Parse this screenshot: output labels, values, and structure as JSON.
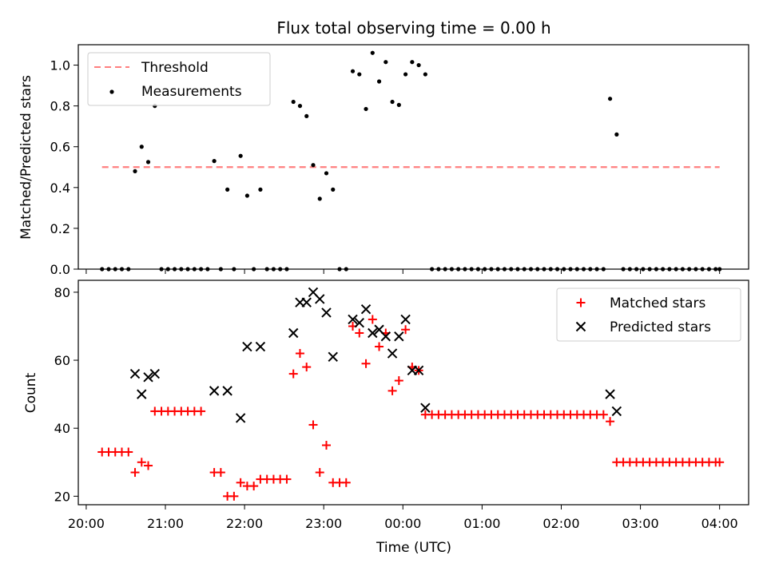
{
  "chart_data": [
    {
      "type": "scatter",
      "title": "Flux total observing time = 0.00 h",
      "xlabel": "",
      "ylabel": "Matched/Predicted stars",
      "xlim": [
        "19:54",
        "04:22"
      ],
      "ylim": [
        0,
        1.1
      ],
      "yticks": [
        0.0,
        0.2,
        0.4,
        0.6,
        0.8,
        1.0
      ],
      "ytick_labels": [
        "0.0",
        "0.2",
        "0.4",
        "0.6",
        "0.8",
        "1.0"
      ],
      "legend_position": "top-left",
      "series": [
        {
          "name": "Threshold",
          "kind": "dashed-line",
          "color": "#ff7f7f",
          "points": [
            [
              "20:12",
              0.5
            ],
            [
              "04:00",
              0.5
            ]
          ]
        },
        {
          "name": "Measurements",
          "kind": "dots",
          "color": "#000000",
          "points": [
            [
              "20:12",
              0.0
            ],
            [
              "20:17",
              0.0
            ],
            [
              "20:22",
              0.0
            ],
            [
              "20:27",
              0.0
            ],
            [
              "20:32",
              0.0
            ],
            [
              "20:37",
              0.48
            ],
            [
              "20:42",
              0.6
            ],
            [
              "20:47",
              0.525
            ],
            [
              "20:52",
              0.8
            ],
            [
              "20:57",
              0.0
            ],
            [
              "21:02",
              0.0
            ],
            [
              "21:07",
              0.0
            ],
            [
              "21:12",
              0.0
            ],
            [
              "21:17",
              0.0
            ],
            [
              "21:22",
              0.0
            ],
            [
              "21:27",
              0.0
            ],
            [
              "21:32",
              0.0
            ],
            [
              "21:37",
              0.53
            ],
            [
              "21:42",
              0.0
            ],
            [
              "21:47",
              0.39
            ],
            [
              "21:52",
              0.0
            ],
            [
              "21:57",
              0.555
            ],
            [
              "22:02",
              0.36
            ],
            [
              "22:07",
              0.0
            ],
            [
              "22:12",
              0.39
            ],
            [
              "22:17",
              0.0
            ],
            [
              "22:22",
              0.0
            ],
            [
              "22:27",
              0.0
            ],
            [
              "22:32",
              0.0
            ],
            [
              "22:37",
              0.82
            ],
            [
              "22:42",
              0.8
            ],
            [
              "22:47",
              0.75
            ],
            [
              "22:52",
              0.51
            ],
            [
              "22:57",
              0.345
            ],
            [
              "23:02",
              0.47
            ],
            [
              "23:07",
              0.39
            ],
            [
              "23:12",
              0.0
            ],
            [
              "23:17",
              0.0
            ],
            [
              "23:22",
              0.97
            ],
            [
              "23:27",
              0.955
            ],
            [
              "23:32",
              0.785
            ],
            [
              "23:37",
              1.06
            ],
            [
              "23:42",
              0.92
            ],
            [
              "23:47",
              1.015
            ],
            [
              "23:52",
              0.82
            ],
            [
              "23:57",
              0.805
            ],
            [
              "00:02",
              0.955
            ],
            [
              "00:07",
              1.015
            ],
            [
              "00:12",
              1.0
            ],
            [
              "00:17",
              0.955
            ],
            [
              "00:22",
              0.0
            ],
            [
              "00:27",
              0.0
            ],
            [
              "00:32",
              0.0
            ],
            [
              "00:37",
              0.0
            ],
            [
              "00:42",
              0.0
            ],
            [
              "00:47",
              0.0
            ],
            [
              "00:52",
              0.0
            ],
            [
              "00:57",
              0.0
            ],
            [
              "01:02",
              0.0
            ],
            [
              "01:07",
              0.0
            ],
            [
              "01:12",
              0.0
            ],
            [
              "01:17",
              0.0
            ],
            [
              "01:22",
              0.0
            ],
            [
              "01:27",
              0.0
            ],
            [
              "01:32",
              0.0
            ],
            [
              "01:37",
              0.0
            ],
            [
              "01:42",
              0.0
            ],
            [
              "01:47",
              0.0
            ],
            [
              "01:52",
              0.0
            ],
            [
              "01:57",
              0.0
            ],
            [
              "02:02",
              0.0
            ],
            [
              "02:07",
              0.0
            ],
            [
              "02:12",
              0.0
            ],
            [
              "02:17",
              0.0
            ],
            [
              "02:22",
              0.0
            ],
            [
              "02:27",
              0.0
            ],
            [
              "02:32",
              0.0
            ],
            [
              "02:37",
              0.835
            ],
            [
              "02:42",
              0.66
            ],
            [
              "02:47",
              0.0
            ],
            [
              "02:52",
              0.0
            ],
            [
              "02:57",
              0.0
            ],
            [
              "03:02",
              0.0
            ],
            [
              "03:07",
              0.0
            ],
            [
              "03:12",
              0.0
            ],
            [
              "03:17",
              0.0
            ],
            [
              "03:22",
              0.0
            ],
            [
              "03:27",
              0.0
            ],
            [
              "03:32",
              0.0
            ],
            [
              "03:37",
              0.0
            ],
            [
              "03:42",
              0.0
            ],
            [
              "03:47",
              0.0
            ],
            [
              "03:52",
              0.0
            ],
            [
              "03:57",
              0.0
            ],
            [
              "04:00",
              0.0
            ]
          ]
        }
      ]
    },
    {
      "type": "scatter",
      "title": "",
      "xlabel": "Time (UTC)",
      "ylabel": "Count",
      "xlim": [
        "19:54",
        "04:22"
      ],
      "ylim": [
        17.5,
        83.5
      ],
      "xticks": [
        "20:00",
        "21:00",
        "22:00",
        "23:00",
        "00:00",
        "01:00",
        "02:00",
        "03:00",
        "04:00"
      ],
      "yticks": [
        20,
        40,
        60,
        80
      ],
      "ytick_labels": [
        "20",
        "40",
        "60",
        "80"
      ],
      "legend_position": "top-right",
      "series": [
        {
          "name": "Matched stars",
          "kind": "plus",
          "color": "#ff0000",
          "points": [
            [
              "20:12",
              33
            ],
            [
              "20:17",
              33
            ],
            [
              "20:22",
              33
            ],
            [
              "20:27",
              33
            ],
            [
              "20:32",
              33
            ],
            [
              "20:37",
              27
            ],
            [
              "20:42",
              30
            ],
            [
              "20:47",
              29
            ],
            [
              "20:52",
              45
            ],
            [
              "20:57",
              45
            ],
            [
              "21:02",
              45
            ],
            [
              "21:07",
              45
            ],
            [
              "21:12",
              45
            ],
            [
              "21:17",
              45
            ],
            [
              "21:22",
              45
            ],
            [
              "21:27",
              45
            ],
            [
              "21:37",
              27
            ],
            [
              "21:42",
              27
            ],
            [
              "21:47",
              20
            ],
            [
              "21:52",
              20
            ],
            [
              "21:57",
              24
            ],
            [
              "22:02",
              23
            ],
            [
              "22:07",
              23
            ],
            [
              "22:12",
              25
            ],
            [
              "22:17",
              25
            ],
            [
              "22:22",
              25
            ],
            [
              "22:27",
              25
            ],
            [
              "22:32",
              25
            ],
            [
              "22:37",
              56
            ],
            [
              "22:42",
              62
            ],
            [
              "22:47",
              58
            ],
            [
              "22:52",
              41
            ],
            [
              "22:57",
              27
            ],
            [
              "23:02",
              35
            ],
            [
              "23:07",
              24
            ],
            [
              "23:12",
              24
            ],
            [
              "23:17",
              24
            ],
            [
              "23:22",
              70
            ],
            [
              "23:27",
              68
            ],
            [
              "23:32",
              59
            ],
            [
              "23:37",
              72
            ],
            [
              "23:42",
              64
            ],
            [
              "23:47",
              68
            ],
            [
              "23:52",
              51
            ],
            [
              "23:57",
              54
            ],
            [
              "00:02",
              69
            ],
            [
              "00:07",
              58
            ],
            [
              "00:12",
              57
            ],
            [
              "00:17",
              44
            ],
            [
              "00:22",
              44
            ],
            [
              "00:27",
              44
            ],
            [
              "00:32",
              44
            ],
            [
              "00:37",
              44
            ],
            [
              "00:42",
              44
            ],
            [
              "00:47",
              44
            ],
            [
              "00:52",
              44
            ],
            [
              "00:57",
              44
            ],
            [
              "01:02",
              44
            ],
            [
              "01:07",
              44
            ],
            [
              "01:12",
              44
            ],
            [
              "01:17",
              44
            ],
            [
              "01:22",
              44
            ],
            [
              "01:27",
              44
            ],
            [
              "01:32",
              44
            ],
            [
              "01:37",
              44
            ],
            [
              "01:42",
              44
            ],
            [
              "01:47",
              44
            ],
            [
              "01:52",
              44
            ],
            [
              "01:57",
              44
            ],
            [
              "02:02",
              44
            ],
            [
              "02:07",
              44
            ],
            [
              "02:12",
              44
            ],
            [
              "02:17",
              44
            ],
            [
              "02:22",
              44
            ],
            [
              "02:27",
              44
            ],
            [
              "02:32",
              44
            ],
            [
              "02:37",
              42
            ],
            [
              "02:42",
              30
            ],
            [
              "02:47",
              30
            ],
            [
              "02:52",
              30
            ],
            [
              "02:57",
              30
            ],
            [
              "03:02",
              30
            ],
            [
              "03:07",
              30
            ],
            [
              "03:12",
              30
            ],
            [
              "03:17",
              30
            ],
            [
              "03:22",
              30
            ],
            [
              "03:27",
              30
            ],
            [
              "03:32",
              30
            ],
            [
              "03:37",
              30
            ],
            [
              "03:42",
              30
            ],
            [
              "03:47",
              30
            ],
            [
              "03:52",
              30
            ],
            [
              "03:57",
              30
            ],
            [
              "04:00",
              30
            ]
          ]
        },
        {
          "name": "Predicted stars",
          "kind": "x",
          "color": "#000000",
          "points": [
            [
              "20:37",
              56
            ],
            [
              "20:42",
              50
            ],
            [
              "20:47",
              55
            ],
            [
              "20:52",
              56
            ],
            [
              "21:37",
              51
            ],
            [
              "21:47",
              51
            ],
            [
              "21:57",
              43
            ],
            [
              "22:02",
              64
            ],
            [
              "22:12",
              64
            ],
            [
              "22:37",
              68
            ],
            [
              "22:42",
              77
            ],
            [
              "22:47",
              77
            ],
            [
              "22:52",
              80
            ],
            [
              "22:57",
              78
            ],
            [
              "23:02",
              74
            ],
            [
              "23:07",
              61
            ],
            [
              "23:22",
              72
            ],
            [
              "23:27",
              71
            ],
            [
              "23:32",
              75
            ],
            [
              "23:37",
              68
            ],
            [
              "23:42",
              69
            ],
            [
              "23:47",
              67
            ],
            [
              "23:52",
              62
            ],
            [
              "23:57",
              67
            ],
            [
              "00:02",
              72
            ],
            [
              "00:07",
              57
            ],
            [
              "00:12",
              57
            ],
            [
              "00:17",
              46
            ],
            [
              "02:37",
              50
            ],
            [
              "02:42",
              45
            ]
          ]
        }
      ]
    }
  ]
}
